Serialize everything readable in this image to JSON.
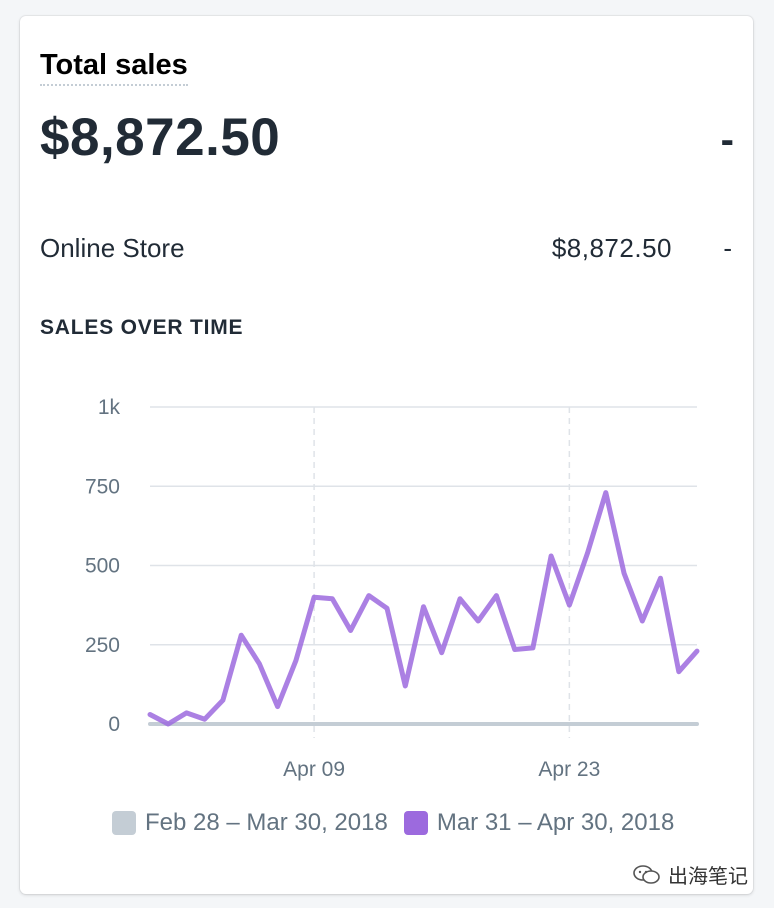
{
  "card": {
    "title": "Total sales",
    "total_value": "$8,872.50",
    "total_change": "-",
    "rows": [
      {
        "label": "Online Store",
        "value": "$8,872.50",
        "change": "-"
      }
    ],
    "section_heading": "SALES OVER TIME"
  },
  "chart_data": {
    "type": "line",
    "y_tick_labels": [
      "0",
      "250",
      "500",
      "750",
      "1k"
    ],
    "y_ticks": [
      0,
      250,
      500,
      750,
      1000
    ],
    "ylim": [
      0,
      1000
    ],
    "x_tick_labels": [
      "Apr 09",
      "Apr 23"
    ],
    "grid": true,
    "legend_placement": "bottom",
    "series": [
      {
        "name": "Feb 28 – Mar 30, 2018",
        "color": "#c4cdd5",
        "values": [
          0,
          0,
          0,
          0,
          0,
          0,
          0,
          0,
          0,
          0,
          0,
          0,
          0,
          0,
          0,
          0,
          0,
          0,
          0,
          0,
          0,
          0,
          0,
          0,
          0,
          0,
          0,
          0,
          0,
          0,
          0
        ]
      },
      {
        "name": "Mar 31 – Apr 30, 2018",
        "color": "#9c6ade",
        "values": [
          30,
          0,
          35,
          15,
          75,
          280,
          190,
          55,
          200,
          400,
          395,
          295,
          405,
          365,
          120,
          370,
          225,
          395,
          325,
          405,
          235,
          240,
          530,
          375,
          540,
          730,
          475,
          325,
          460,
          165,
          230
        ]
      }
    ],
    "x_tick_positions": [
      9,
      23
    ]
  },
  "legend": {
    "items": [
      {
        "label": "Feb 28 – Mar 30, 2018",
        "color": "#c4cdd5"
      },
      {
        "label": "Mar 31 – Apr 30, 2018",
        "color": "#9c6ade"
      }
    ]
  },
  "watermark": {
    "text": "出海笔记"
  }
}
